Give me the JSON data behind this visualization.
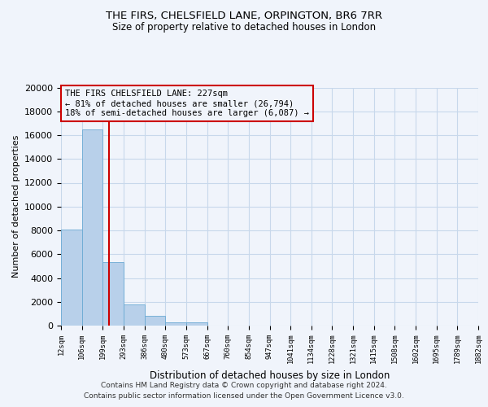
{
  "title": "THE FIRS, CHELSFIELD LANE, ORPINGTON, BR6 7RR",
  "subtitle": "Size of property relative to detached houses in London",
  "xlabel": "Distribution of detached houses by size in London",
  "ylabel": "Number of detached properties",
  "bar_heights": [
    8100,
    16500,
    5300,
    1800,
    800,
    300,
    300,
    0,
    0,
    0,
    0,
    0,
    0,
    0,
    0,
    0,
    0,
    0,
    0,
    0
  ],
  "bar_labels": [
    "12sqm",
    "106sqm",
    "199sqm",
    "293sqm",
    "386sqm",
    "480sqm",
    "573sqm",
    "667sqm",
    "760sqm",
    "854sqm",
    "947sqm",
    "1041sqm",
    "1134sqm",
    "1228sqm",
    "1321sqm",
    "1415sqm",
    "1508sqm",
    "1602sqm",
    "1695sqm",
    "1789sqm",
    "1882sqm"
  ],
  "bar_color": "#b8d0ea",
  "bar_edge_color": "#6aaad4",
  "grid_color": "#c8d8eb",
  "vline_color": "#cc0000",
  "vline_pos": 2.298,
  "annotation_line1": "THE FIRS CHELSFIELD LANE: 227sqm",
  "annotation_line2": "← 81% of detached houses are smaller (26,794)",
  "annotation_line3": "18% of semi-detached houses are larger (6,087) →",
  "annotation_box_edge_color": "#cc0000",
  "ylim": [
    0,
    20000
  ],
  "yticks": [
    0,
    2000,
    4000,
    6000,
    8000,
    10000,
    12000,
    14000,
    16000,
    18000,
    20000
  ],
  "footer_line1": "Contains HM Land Registry data © Crown copyright and database right 2024.",
  "footer_line2": "Contains public sector information licensed under the Open Government Licence v3.0.",
  "bg_color": "#f0f4fb",
  "plot_bg_color": "#f0f4fb"
}
